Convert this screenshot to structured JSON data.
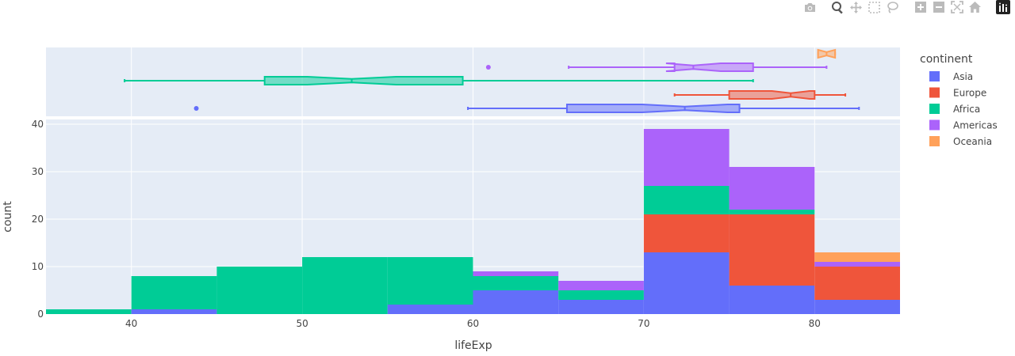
{
  "chart_data": {
    "type": "histogram_with_marginal_box",
    "xlabel": "lifeExp",
    "ylabel": "count",
    "xlim": [
      35,
      85
    ],
    "ylim": [
      0,
      41
    ],
    "x_ticks": [
      40,
      50,
      60,
      70,
      80
    ],
    "y_ticks": [
      0,
      10,
      20,
      30,
      40
    ],
    "grid": true,
    "barmode": "stack",
    "legend": {
      "title": "continent",
      "placement": "right"
    },
    "bins": [
      [
        35,
        40
      ],
      [
        40,
        45
      ],
      [
        45,
        50
      ],
      [
        50,
        55
      ],
      [
        55,
        60
      ],
      [
        60,
        65
      ],
      [
        65,
        70
      ],
      [
        70,
        75
      ],
      [
        75,
        80
      ],
      [
        80,
        85
      ]
    ],
    "series": [
      {
        "name": "Asia",
        "color": "#636efa",
        "counts": [
          0,
          1,
          0,
          0,
          2,
          5,
          3,
          13,
          6,
          3
        ]
      },
      {
        "name": "Europe",
        "color": "#ef553b",
        "counts": [
          0,
          0,
          0,
          0,
          0,
          0,
          0,
          8,
          15,
          7
        ]
      },
      {
        "name": "Africa",
        "color": "#00cc96",
        "counts": [
          1,
          7,
          10,
          12,
          10,
          3,
          2,
          6,
          1,
          0
        ]
      },
      {
        "name": "Americas",
        "color": "#ab63fa",
        "counts": [
          0,
          0,
          0,
          0,
          0,
          1,
          2,
          12,
          9,
          1
        ]
      },
      {
        "name": "Oceania",
        "color": "#ffa15a",
        "counts": [
          0,
          0,
          0,
          0,
          0,
          0,
          0,
          0,
          0,
          2
        ]
      }
    ],
    "marginal_box": [
      {
        "name": "Asia",
        "color": "#636efa",
        "row": 0,
        "lowerfence": 59.7,
        "q1": 65.5,
        "median": 72.4,
        "q3": 75.6,
        "upperfence": 82.6,
        "notch_lo": 69.9,
        "notch_hi": 74.9,
        "outliers": [
          43.8
        ]
      },
      {
        "name": "Europe",
        "color": "#ef553b",
        "row": 1,
        "lowerfence": 71.8,
        "q1": 75.0,
        "median": 78.6,
        "q3": 80.0,
        "upperfence": 81.8,
        "notch_lo": 77.5,
        "notch_hi": 79.7,
        "outliers": []
      },
      {
        "name": "Africa",
        "color": "#00cc96",
        "row": 2,
        "lowerfence": 39.6,
        "q1": 47.8,
        "median": 52.9,
        "q3": 59.4,
        "upperfence": 76.4,
        "notch_lo": 50.3,
        "notch_hi": 55.5,
        "outliers": []
      },
      {
        "name": "Americas",
        "color": "#ab63fa",
        "row": 3,
        "lowerfence": 65.6,
        "q1": 71.8,
        "median": 72.9,
        "q3": 76.4,
        "upperfence": 80.7,
        "notch_lo": 71.3,
        "notch_hi": 74.5,
        "outliers": [
          60.9
        ]
      },
      {
        "name": "Oceania",
        "color": "#ffa15a",
        "row": 4,
        "lowerfence": 80.2,
        "q1": 80.2,
        "median": 80.7,
        "q3": 81.2,
        "upperfence": 81.2,
        "notch_lo": 80.2,
        "notch_hi": 81.2,
        "outliers": []
      }
    ]
  }
}
